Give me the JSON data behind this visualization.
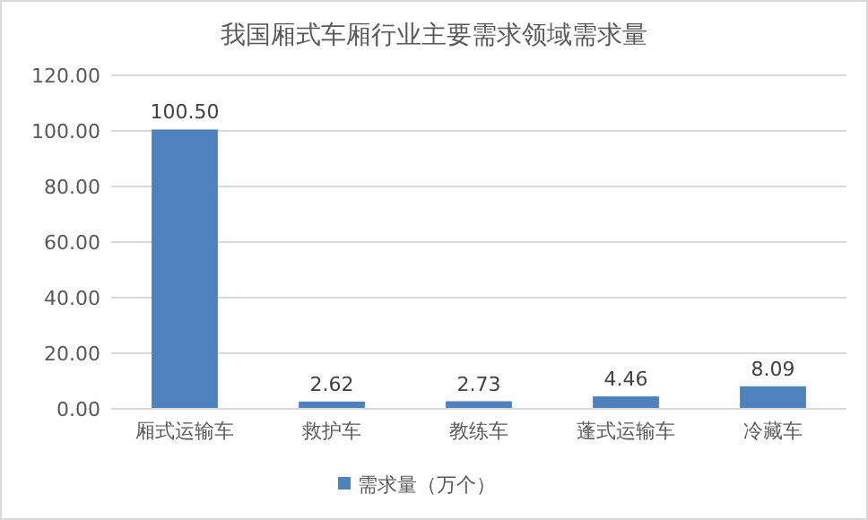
{
  "chart_data": {
    "type": "bar",
    "title": "我国厢式车厢行业主要需求领域需求量",
    "categories": [
      "厢式运输车",
      "救护车",
      "教练车",
      "蓬式运输车",
      "冷藏车"
    ],
    "series": [
      {
        "name": "需求量（万个）",
        "color": "#4f81bd",
        "values": [
          100.5,
          2.62,
          2.73,
          4.46,
          8.09
        ]
      }
    ],
    "value_labels": [
      "100.50",
      "2.62",
      "2.73",
      "4.46",
      "8.09"
    ],
    "ylim": [
      0,
      120
    ],
    "yticks": [
      {
        "value": 0,
        "label": "0.00"
      },
      {
        "value": 20,
        "label": "20.00"
      },
      {
        "value": 40,
        "label": "40.00"
      },
      {
        "value": 60,
        "label": "60.00"
      },
      {
        "value": 80,
        "label": "80.00"
      },
      {
        "value": 100,
        "label": "100.00"
      },
      {
        "value": 120,
        "label": "120.00"
      }
    ],
    "grid": "y",
    "legend": "bottom"
  }
}
